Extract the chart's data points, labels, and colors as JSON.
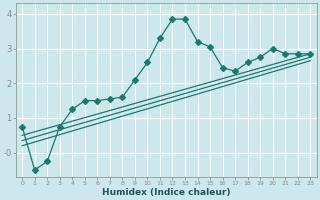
{
  "xlabel": "Humidex (Indice chaleur)",
  "ylabel": "",
  "xlim": [
    -0.5,
    23.5
  ],
  "ylim": [
    -0.7,
    4.3
  ],
  "background_color": "#cce8ec",
  "grid_color": "#ffffff",
  "line_color": "#1a7a6e",
  "line1_x": [
    0,
    1,
    2,
    3,
    4,
    5,
    6,
    7,
    8,
    9,
    10,
    11,
    12,
    13,
    14,
    15,
    16,
    17,
    18,
    19,
    20,
    21,
    22,
    23
  ],
  "line1_y": [
    0.75,
    -0.5,
    -0.25,
    0.75,
    1.25,
    1.5,
    1.5,
    1.55,
    1.6,
    2.1,
    2.6,
    3.3,
    3.85,
    3.85,
    3.2,
    3.05,
    2.45,
    2.35,
    2.6,
    2.75,
    3.0,
    2.85,
    2.85,
    2.85
  ],
  "line2_x": [
    0,
    23
  ],
  "line2_y": [
    0.5,
    2.85
  ],
  "line3_x": [
    0,
    23
  ],
  "line3_y": [
    0.35,
    2.75
  ],
  "line4_x": [
    0,
    23
  ],
  "line4_y": [
    0.2,
    2.65
  ],
  "markersize": 3
}
